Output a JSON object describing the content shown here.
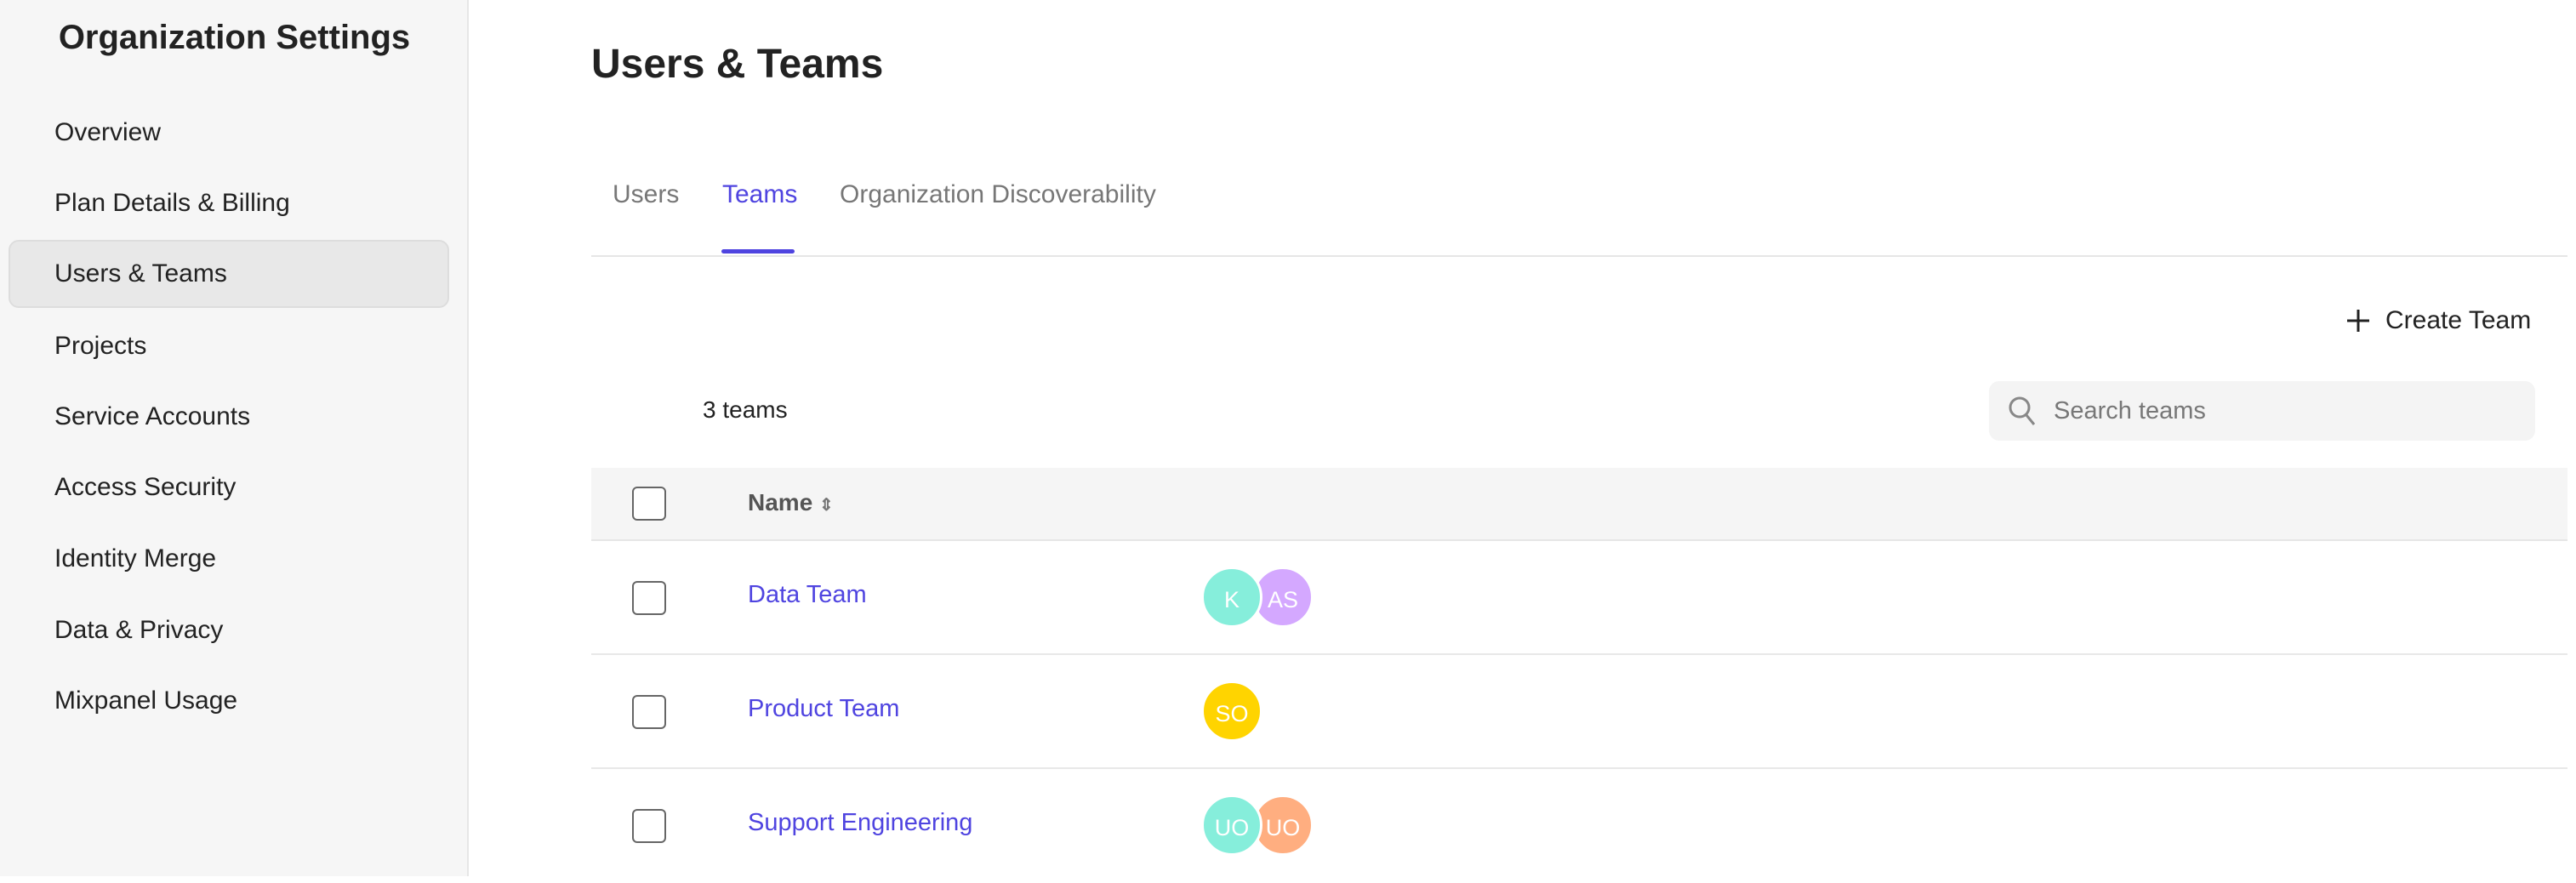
{
  "sidebar": {
    "title": "Organization Settings",
    "items": [
      {
        "label": "Overview"
      },
      {
        "label": "Plan Details & Billing"
      },
      {
        "label": "Users & Teams",
        "selected": true
      },
      {
        "label": "Projects"
      },
      {
        "label": "Service Accounts"
      },
      {
        "label": "Access Security"
      },
      {
        "label": "Identity Merge"
      },
      {
        "label": "Data & Privacy"
      },
      {
        "label": "Mixpanel Usage"
      }
    ]
  },
  "main": {
    "title": "Users & Teams",
    "tabs": [
      {
        "label": "Users"
      },
      {
        "label": "Teams",
        "active": true
      },
      {
        "label": "Organization Discoverability"
      }
    ],
    "create_label": "Create Team",
    "count": "3 teams",
    "search": {
      "placeholder": "Search teams",
      "icon": "search-icon"
    },
    "table": {
      "name_header": "Name",
      "rows": [
        {
          "name": "Data Team",
          "avatars": [
            {
              "initials": "K",
              "color": "#86eedb"
            },
            {
              "initials": "AS",
              "color": "#d4a8ff"
            }
          ]
        },
        {
          "name": "Product Team",
          "avatars": [
            {
              "initials": "SO",
              "color": "#ffd400"
            }
          ]
        },
        {
          "name": "Support Engineering",
          "avatars": [
            {
              "initials": "UO",
              "color": "#86eedb"
            },
            {
              "initials": "UO",
              "color": "#ffae80"
            }
          ]
        }
      ]
    }
  },
  "colors": {
    "accent": "#4f44e0"
  }
}
